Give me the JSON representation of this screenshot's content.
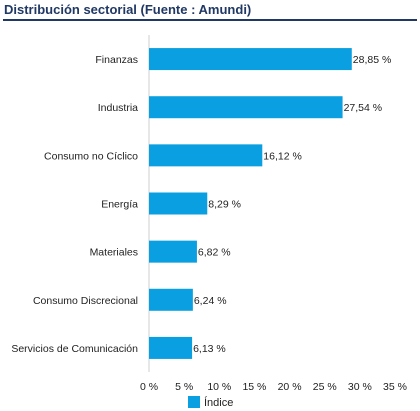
{
  "header": {
    "title": "Distribución sectorial (Fuente : Amundi)"
  },
  "chart_data": {
    "type": "bar",
    "orientation": "horizontal",
    "categories": [
      "Finanzas",
      "Industria",
      "Consumo no Cíclico",
      "Energía",
      "Materiales",
      "Consumo Discrecional",
      "Servicios de Comunicación"
    ],
    "series": [
      {
        "name": "Índice",
        "values": [
          28.85,
          27.54,
          16.12,
          8.29,
          6.82,
          6.24,
          6.13
        ],
        "color": "#0a9fe0"
      }
    ],
    "value_labels": [
      "28,85 %",
      "27,54 %",
      "16,12 %",
      "8,29 %",
      "6,82 %",
      "6,24 %",
      "6,13 %"
    ],
    "xlim": [
      0,
      35
    ],
    "xticks": [
      0,
      5,
      10,
      15,
      20,
      25,
      30,
      35
    ],
    "xtick_labels": [
      "0 %",
      "5 %",
      "10 %",
      "15 %",
      "20 %",
      "25 %",
      "30 %",
      "35 %"
    ],
    "grid": false,
    "legend_position": "bottom"
  }
}
